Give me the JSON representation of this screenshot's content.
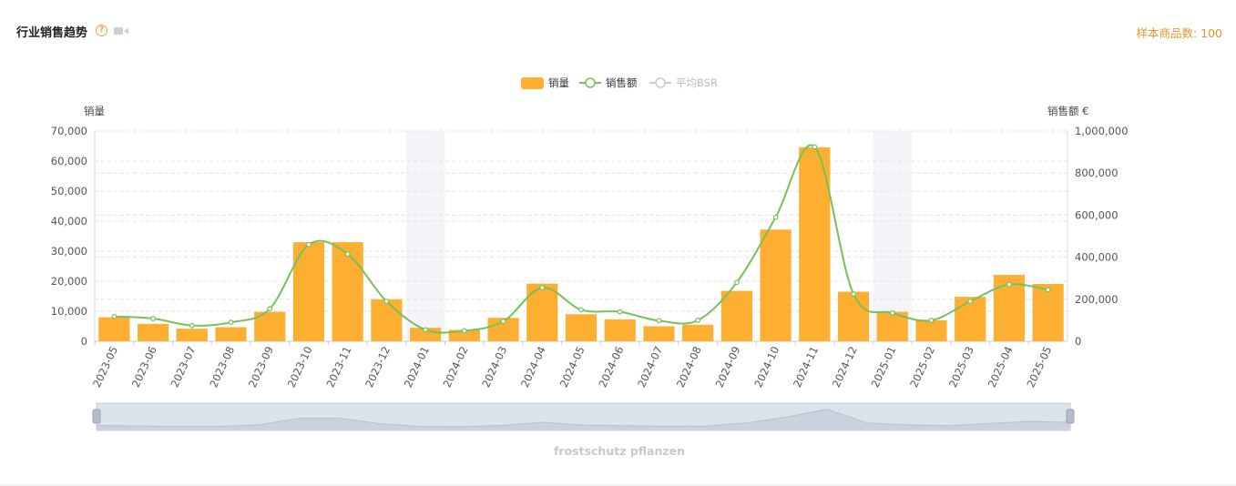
{
  "header": {
    "title": "行业销售趋势",
    "help_icon": "question-circle-icon",
    "video_icon": "video-camera-icon",
    "sample_label": "样本商品数: 100"
  },
  "colors": {
    "bar": "#fdaf32",
    "line": "#73c25a",
    "bsr_legend": "#cccccc",
    "highlight": "#f4f5f9",
    "grid": "#e3e3e3",
    "sample_text": "#e8952a"
  },
  "chart_data": {
    "type": "bar",
    "categories": [
      "2023-05",
      "2023-06",
      "2023-07",
      "2023-08",
      "2023-09",
      "2023-10",
      "2023-11",
      "2023-12",
      "2024-01",
      "2024-02",
      "2024-03",
      "2024-04",
      "2024-05",
      "2024-06",
      "2024-07",
      "2024-08",
      "2024-09",
      "2024-10",
      "2024-11",
      "2024-12",
      "2025-01",
      "2025-02",
      "2025-03",
      "2025-04",
      "2025-05"
    ],
    "legend": [
      {
        "name": "销量",
        "kind": "bar"
      },
      {
        "name": "销售额",
        "kind": "line"
      },
      {
        "name": "平均BSR",
        "kind": "line-disabled"
      }
    ],
    "series": [
      {
        "name": "销量",
        "axis": "left",
        "values": [
          8000,
          5800,
          4200,
          4700,
          9800,
          33000,
          33000,
          14000,
          4500,
          3800,
          7800,
          19200,
          9000,
          7300,
          5000,
          5500,
          16800,
          37200,
          64600,
          16500,
          9800,
          7000,
          14800,
          22100,
          19100
        ]
      },
      {
        "name": "销售额",
        "axis": "right",
        "values": [
          118000,
          108000,
          75000,
          90000,
          155000,
          460000,
          415000,
          190000,
          55000,
          50000,
          95000,
          255000,
          150000,
          140000,
          98000,
          100000,
          280000,
          590000,
          925000,
          225000,
          135000,
          100000,
          190000,
          270000,
          245000
        ]
      }
    ],
    "y_left": {
      "label": "销量",
      "min": 0,
      "max": 70000,
      "ticks": [
        "0",
        "10,000",
        "20,000",
        "30,000",
        "40,000",
        "50,000",
        "60,000",
        "70,000"
      ]
    },
    "y_right": {
      "label": "销售额 €",
      "min": 0,
      "max": 1000000,
      "ticks": [
        "0",
        "200,000",
        "400,000",
        "600,000",
        "800,000",
        "1,000,000"
      ]
    },
    "highlighted_categories": [
      "2024-01",
      "2025-01"
    ],
    "grid": true,
    "legend_position": "top-center",
    "zoom_slider": true,
    "footer_label": "frostschutz pflanzen"
  }
}
